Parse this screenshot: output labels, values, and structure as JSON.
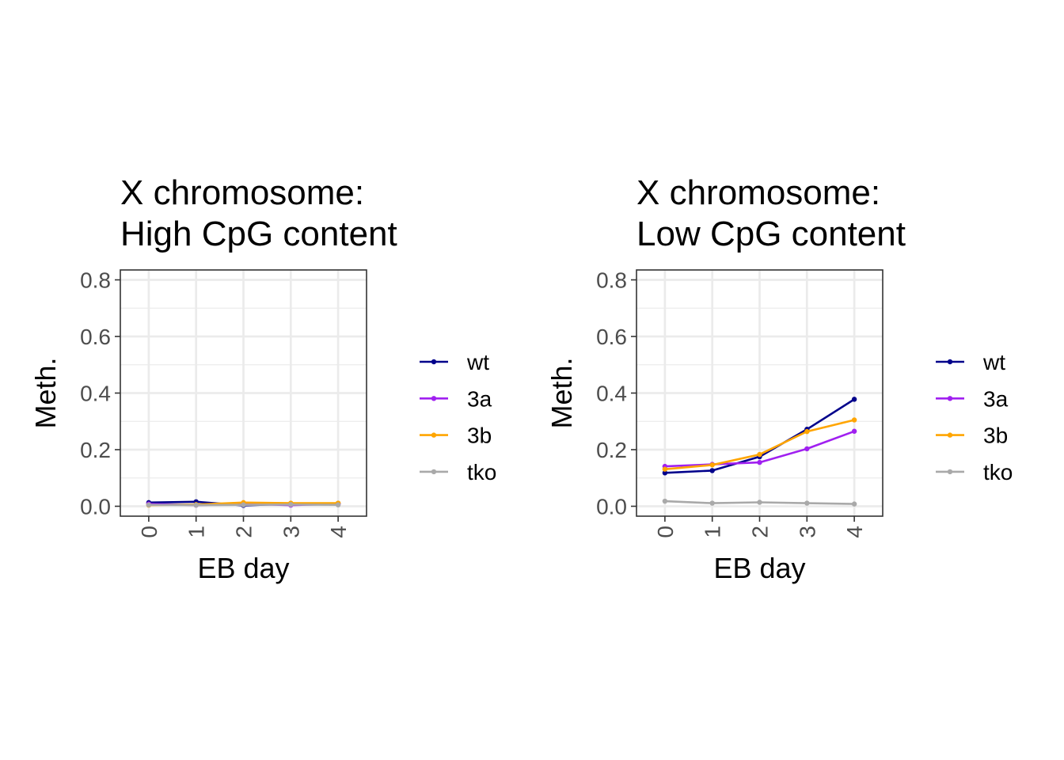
{
  "chart_data": [
    {
      "type": "line",
      "title_lines": [
        "X chromosome:",
        "High CpG content"
      ],
      "xlabel": "EB day",
      "ylabel": "Meth.",
      "x": [
        0,
        1,
        2,
        3,
        4
      ],
      "x_tick_labels": [
        "0",
        "1",
        "2",
        "3",
        "4"
      ],
      "y_ticks": [
        0.0,
        0.2,
        0.4,
        0.6,
        0.8
      ],
      "y_tick_labels": [
        "0.0",
        "0.2",
        "0.4",
        "0.6",
        "0.8"
      ],
      "ylim": [
        -0.035,
        0.835
      ],
      "xlim": [
        -0.6,
        4.6
      ],
      "grid": true,
      "legend_position": "right",
      "series": [
        {
          "name": "wt",
          "color": "#00008B",
          "values": [
            0.013,
            0.016,
            0.003,
            0.009,
            0.01
          ]
        },
        {
          "name": "3a",
          "color": "#A020F0",
          "values": [
            0.008,
            0.004,
            0.008,
            0.004,
            0.008
          ]
        },
        {
          "name": "3b",
          "color": "#FFA500",
          "values": [
            0.004,
            0.006,
            0.013,
            0.011,
            0.011
          ]
        },
        {
          "name": "tko",
          "color": "#A9A9A9",
          "values": [
            0.005,
            0.004,
            0.005,
            0.006,
            0.005
          ]
        }
      ]
    },
    {
      "type": "line",
      "title_lines": [
        "X chromosome:",
        "Low CpG content"
      ],
      "xlabel": "EB day",
      "ylabel": "Meth.",
      "x": [
        0,
        1,
        2,
        3,
        4
      ],
      "x_tick_labels": [
        "0",
        "1",
        "2",
        "3",
        "4"
      ],
      "y_ticks": [
        0.0,
        0.2,
        0.4,
        0.6,
        0.8
      ],
      "y_tick_labels": [
        "0.0",
        "0.2",
        "0.4",
        "0.6",
        "0.8"
      ],
      "ylim": [
        -0.035,
        0.835
      ],
      "xlim": [
        -0.6,
        4.6
      ],
      "grid": true,
      "legend_position": "right",
      "series": [
        {
          "name": "wt",
          "color": "#00008B",
          "values": [
            0.118,
            0.126,
            0.175,
            0.272,
            0.378
          ]
        },
        {
          "name": "3a",
          "color": "#A020F0",
          "values": [
            0.141,
            0.148,
            0.155,
            0.203,
            0.265
          ]
        },
        {
          "name": "3b",
          "color": "#FFA500",
          "values": [
            0.131,
            0.146,
            0.183,
            0.264,
            0.305
          ]
        },
        {
          "name": "tko",
          "color": "#A9A9A9",
          "values": [
            0.018,
            0.011,
            0.014,
            0.011,
            0.008
          ]
        }
      ]
    }
  ]
}
